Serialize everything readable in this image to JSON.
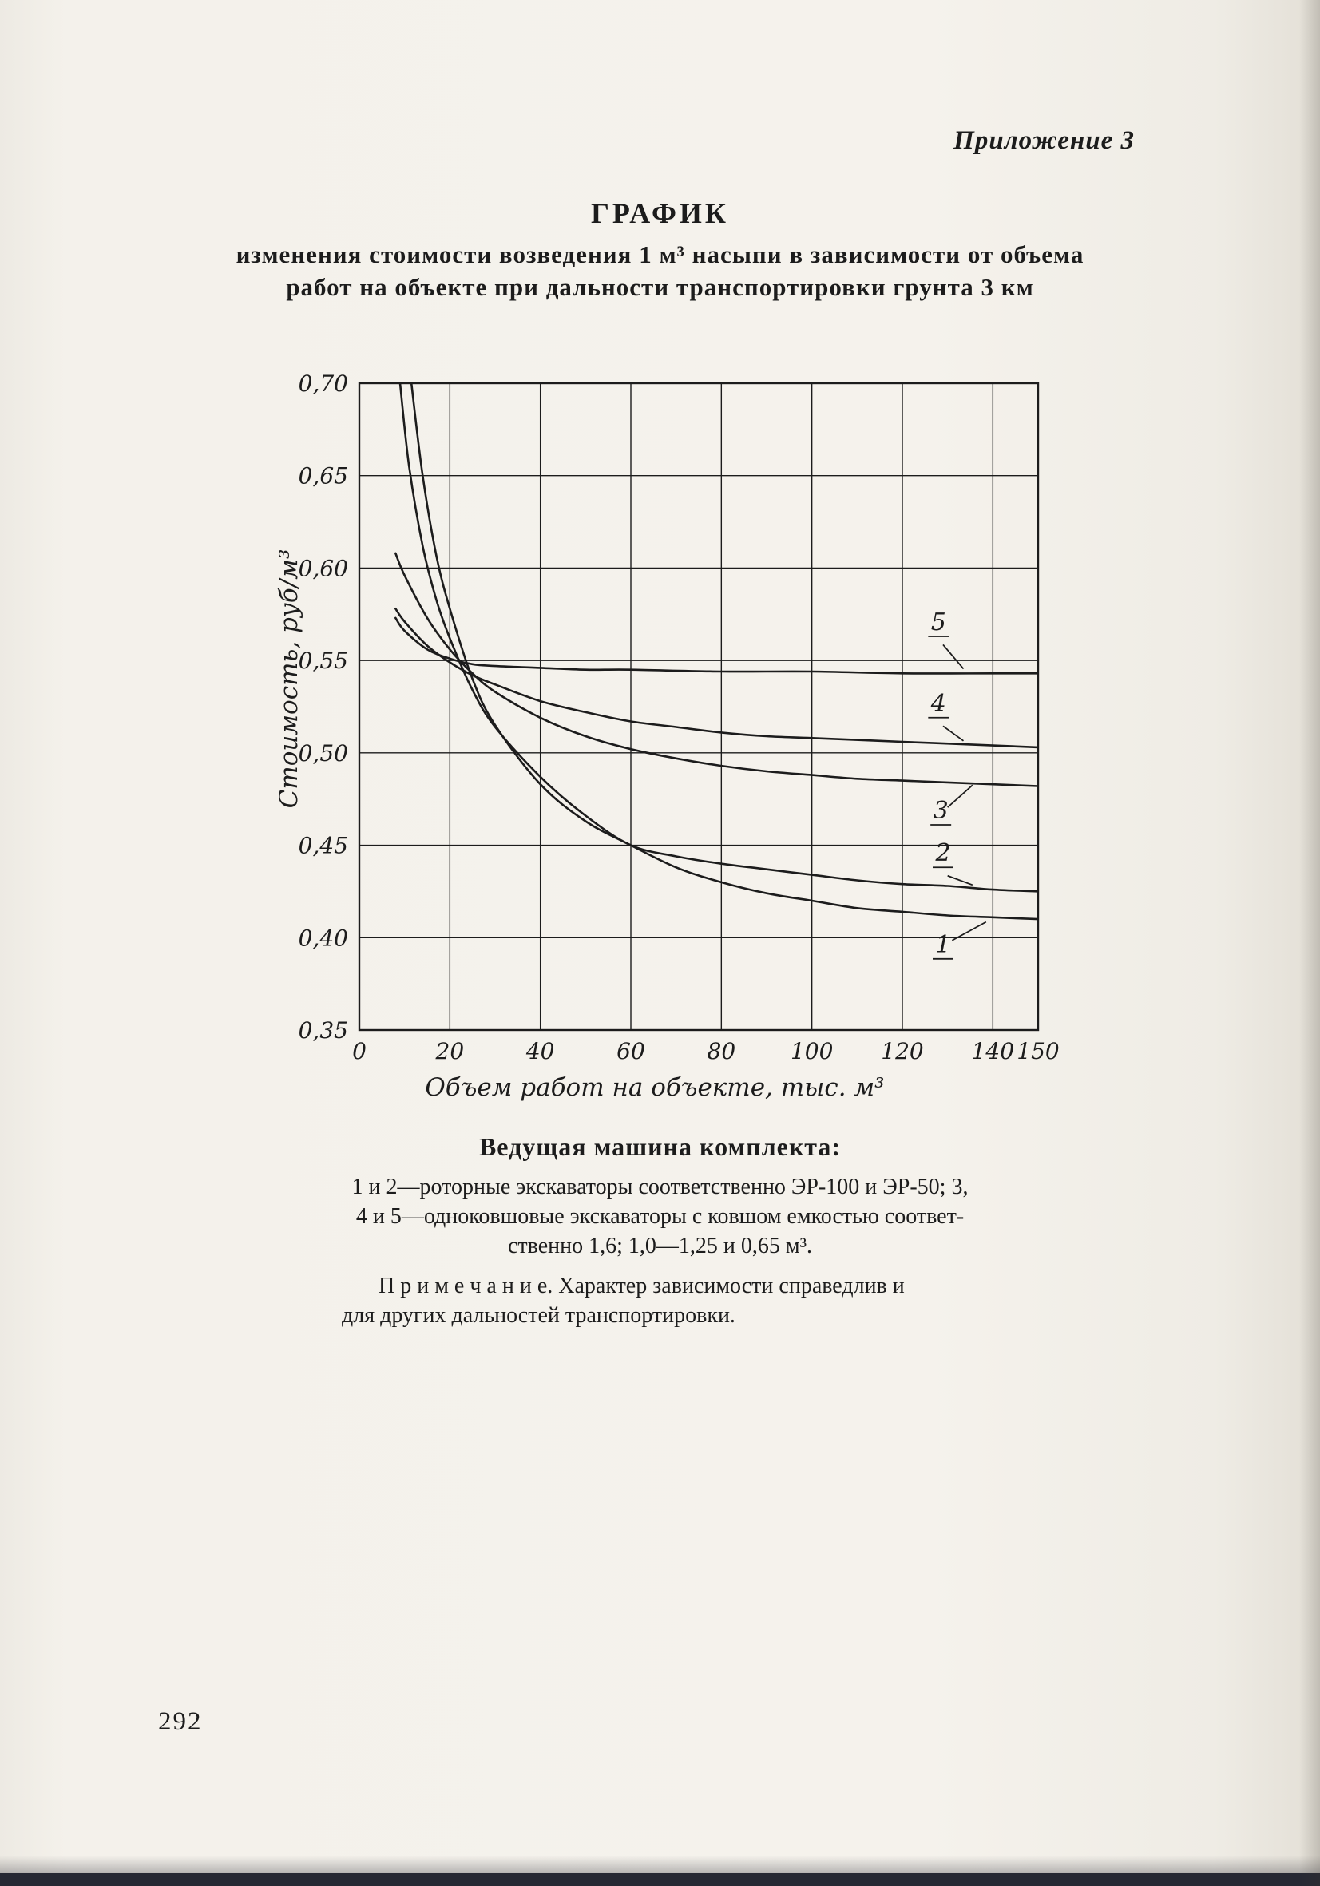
{
  "page": {
    "appendix_label": "Приложение 3",
    "page_number": "292"
  },
  "heading": {
    "title": "ГРАФИК",
    "subtitle_line1": "изменения стоимости возведения 1 м³ насыпи в зависимости от объема",
    "subtitle_line2": "работ на объекте при дальности транспортировки грунта 3 км",
    "caption_lead": "Ведущая машина комплекта:"
  },
  "chart_data": {
    "type": "line",
    "title": "График изменения стоимости возведения 1 м³ насыпи в зависимости от объема работ на объекте при дальности транспортировки грунта 3 км",
    "xlabel": "Объем работ на объекте, тыс. м³",
    "ylabel": "Стоимость, руб/м³",
    "xlim": [
      0,
      150
    ],
    "ylim": [
      0.35,
      0.7
    ],
    "x_ticks": [
      0,
      20,
      40,
      60,
      80,
      100,
      120,
      140,
      150
    ],
    "x_tick_labels": [
      "0",
      "20",
      "40",
      "60",
      "80",
      "100",
      "120",
      "140",
      "150"
    ],
    "y_ticks": [
      0.35,
      0.4,
      0.45,
      0.5,
      0.55,
      0.6,
      0.65,
      0.7
    ],
    "y_tick_labels": [
      "0,35",
      "0,40",
      "0,45",
      "0,50",
      "0,55",
      "0,60",
      "0,65",
      "0,70"
    ],
    "grid": true,
    "legend_position": "none",
    "ink_color": "#1c1c1c",
    "series": [
      {
        "name": "1",
        "x": [
          11.5,
          14,
          17,
          20,
          25,
          30,
          40,
          50,
          60,
          70,
          80,
          90,
          100,
          110,
          120,
          130,
          140,
          150
        ],
        "y": [
          0.7,
          0.65,
          0.607,
          0.578,
          0.54,
          0.515,
          0.483,
          0.463,
          0.45,
          0.438,
          0.43,
          0.424,
          0.42,
          0.416,
          0.414,
          0.412,
          0.411,
          0.41
        ],
        "label": {
          "text": "1",
          "tx": 129,
          "ty": 0.392,
          "px1": 131,
          "py1": 0.3985,
          "px2": 138.5,
          "py2": 0.4085
        }
      },
      {
        "name": "2",
        "x": [
          9,
          11,
          14,
          17,
          20,
          25,
          30,
          40,
          50,
          60,
          70,
          80,
          90,
          100,
          110,
          120,
          130,
          140,
          150
        ],
        "y": [
          0.7,
          0.655,
          0.612,
          0.583,
          0.562,
          0.534,
          0.514,
          0.487,
          0.466,
          0.45,
          0.444,
          0.44,
          0.437,
          0.434,
          0.431,
          0.429,
          0.428,
          0.426,
          0.425
        ],
        "label": {
          "text": "2",
          "tx": 129,
          "ty": 0.4415,
          "px1": 130,
          "py1": 0.4335,
          "px2": 135.5,
          "py2": 0.4285
        }
      },
      {
        "name": "3",
        "x": [
          8,
          10,
          15,
          20,
          25,
          30,
          40,
          50,
          60,
          70,
          80,
          90,
          100,
          110,
          120,
          130,
          140,
          150
        ],
        "y": [
          0.608,
          0.596,
          0.573,
          0.556,
          0.543,
          0.533,
          0.519,
          0.509,
          0.502,
          0.497,
          0.493,
          0.49,
          0.488,
          0.486,
          0.485,
          0.484,
          0.483,
          0.482
        ],
        "label": {
          "text": "3",
          "tx": 128.5,
          "ty": 0.4645,
          "px1": 130,
          "py1": 0.4705,
          "px2": 135.5,
          "py2": 0.4825
        }
      },
      {
        "name": "4",
        "x": [
          8,
          10,
          15,
          20,
          25,
          30,
          40,
          50,
          60,
          70,
          80,
          90,
          100,
          120,
          140,
          150
        ],
        "y": [
          0.578,
          0.571,
          0.558,
          0.549,
          0.542,
          0.537,
          0.528,
          0.522,
          0.517,
          0.514,
          0.511,
          0.509,
          0.508,
          0.506,
          0.504,
          0.503
        ],
        "label": {
          "text": "4",
          "tx": 128,
          "ty": 0.5225,
          "px1": 129,
          "py1": 0.5145,
          "px2": 133.5,
          "py2": 0.5065
        }
      },
      {
        "name": "5",
        "x": [
          8,
          10,
          15,
          20,
          25,
          30,
          40,
          50,
          60,
          80,
          100,
          120,
          140,
          150
        ],
        "y": [
          0.573,
          0.566,
          0.556,
          0.551,
          0.548,
          0.547,
          0.546,
          0.545,
          0.545,
          0.544,
          0.544,
          0.543,
          0.543,
          0.543
        ],
        "label": {
          "text": "5",
          "tx": 128,
          "ty": 0.5665,
          "px1": 129,
          "py1": 0.5585,
          "px2": 133.5,
          "py2": 0.5455
        }
      }
    ]
  },
  "caption": {
    "lines": [
      "1 и 2—роторные экскаваторы соответственно ЭР-100 и ЭР-50; 3,",
      "4 и 5—одноковшовые экскаваторы с ковшом емкостью соответ-",
      "ственно 1,6; 1,0—1,25 и 0,65 м³."
    ],
    "note_line1": "П р и м е ч а н и е.  Характер  зависимости  справедлив  и",
    "note_line2": "для  других  дальностей  транспортировки."
  }
}
